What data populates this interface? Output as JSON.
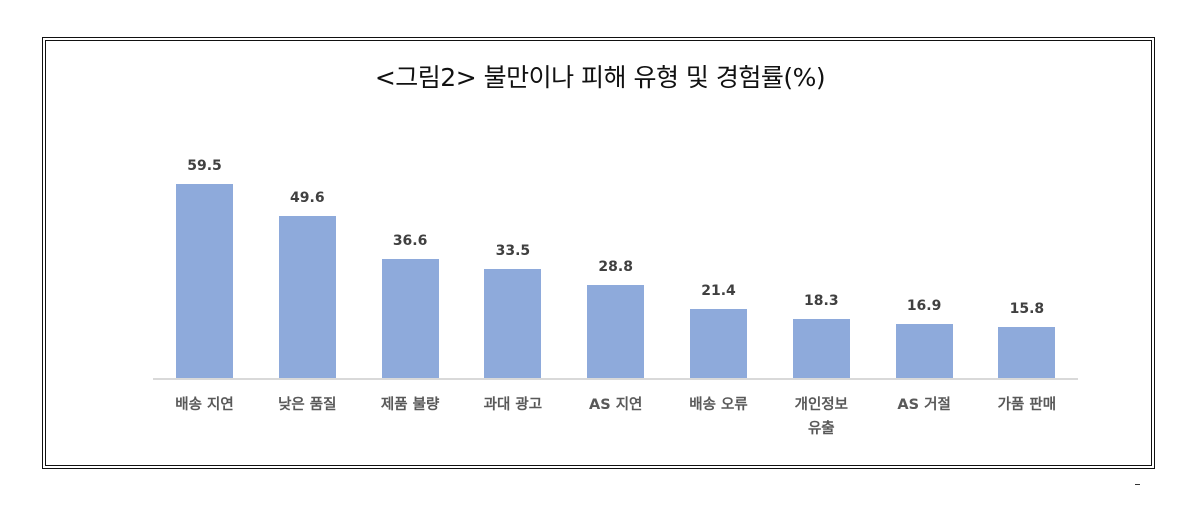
{
  "chart_data": {
    "type": "bar",
    "title": "<그림2> 불만이나 피해 유형 및 경험률(%)",
    "xlabel": "",
    "ylabel": "",
    "ylim": [
      0,
      60
    ],
    "grid": false,
    "legend": null,
    "bar_color": "#8eaadb",
    "categories": [
      "배송 지연",
      "낮은 품질",
      "제품 불량",
      "과대 광고",
      "AS 지연",
      "배송 오류",
      "개인정보 유출",
      "AS 거절",
      "가품 판매"
    ],
    "values": [
      59.5,
      49.6,
      36.6,
      33.5,
      28.8,
      21.4,
      18.3,
      16.9,
      15.8
    ],
    "value_labels": [
      "59.5",
      "49.6",
      "36.6",
      "33.5",
      "28.8",
      "21.4",
      "18.3",
      "16.9",
      "15.8"
    ],
    "category_lines": [
      [
        "배송 지연"
      ],
      [
        "낮은 품질"
      ],
      [
        "제품 불량"
      ],
      [
        "과대 광고"
      ],
      [
        "AS 지연"
      ],
      [
        "배송 오류"
      ],
      [
        "개인정보",
        "유출"
      ],
      [
        "AS 거절"
      ],
      [
        "가품 판매"
      ]
    ]
  }
}
